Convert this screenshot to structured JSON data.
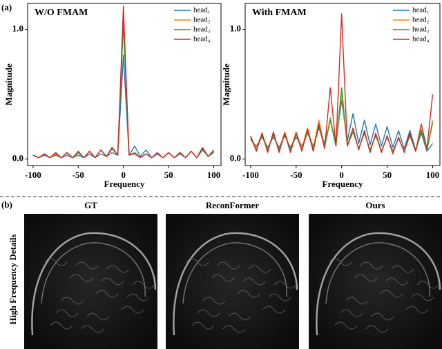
{
  "figure": {
    "label_a": "(a)",
    "label_b": "(b)",
    "row_label": "High Frequency Details",
    "image_titles": [
      "GT",
      "ReconFormer",
      "Ours"
    ]
  },
  "chart_data": [
    {
      "type": "line",
      "title": "W/O FMAM",
      "xlabel": "Frequency",
      "ylabel": "Magnitude",
      "xlim": [
        -106,
        108
      ],
      "ylim": [
        -0.05,
        1.2
      ],
      "xticks": [
        -100,
        -50,
        0,
        50,
        100
      ],
      "yticks": [
        {
          "value": 0,
          "label": "0.0"
        },
        {
          "value": 1,
          "label": "1.0"
        }
      ],
      "legend": "upper right",
      "x": [
        -100,
        -93.75,
        -87.5,
        -81.25,
        -75,
        -68.75,
        -62.5,
        -56.25,
        -50,
        -43.75,
        -37.5,
        -31.25,
        -25,
        -18.75,
        -12.5,
        -6.25,
        0,
        6.25,
        12.5,
        18.75,
        25,
        31.25,
        37.5,
        43.75,
        50,
        56.25,
        62.5,
        68.75,
        75,
        81.25,
        87.5,
        93.75,
        100
      ],
      "series": [
        {
          "name": "head₁",
          "color": "#1f77b4",
          "values": [
            0.03,
            0.01,
            0.03,
            0.01,
            0.03,
            0.01,
            0.03,
            0.01,
            0.03,
            0.01,
            0.04,
            0.01,
            0.04,
            0.02,
            0.05,
            0.03,
            0.8,
            0.03,
            0.1,
            0.02,
            0.07,
            0.01,
            0.05,
            0.01,
            0.05,
            0.01,
            0.04,
            0.01,
            0.06,
            0.01,
            0.07,
            0.02,
            0.05
          ]
        },
        {
          "name": "head₂",
          "color": "#ff7f0e",
          "values": [
            0.03,
            0.01,
            0.04,
            0.01,
            0.04,
            0.01,
            0.05,
            0.01,
            0.05,
            0.01,
            0.06,
            0.01,
            0.07,
            0.02,
            0.09,
            0.03,
            1.1,
            0.03,
            0.05,
            0.01,
            0.04,
            0.01,
            0.04,
            0.01,
            0.05,
            0.01,
            0.05,
            0.01,
            0.06,
            0.01,
            0.08,
            0.02,
            0.06
          ]
        },
        {
          "name": "head₃",
          "color": "#2ca02c",
          "values": [
            0.03,
            0.01,
            0.04,
            0.01,
            0.05,
            0.01,
            0.05,
            0.01,
            0.05,
            0.01,
            0.06,
            0.01,
            0.07,
            0.02,
            0.08,
            0.03,
            1.05,
            0.03,
            0.05,
            0.01,
            0.04,
            0.01,
            0.04,
            0.01,
            0.05,
            0.01,
            0.05,
            0.01,
            0.06,
            0.01,
            0.08,
            0.02,
            0.06
          ]
        },
        {
          "name": "head₄",
          "color": "#d62728",
          "values": [
            0.03,
            0.01,
            0.04,
            0.01,
            0.05,
            0.01,
            0.05,
            0.01,
            0.06,
            0.01,
            0.06,
            0.01,
            0.07,
            0.02,
            0.09,
            0.03,
            1.18,
            0.03,
            0.04,
            0.01,
            0.04,
            0.01,
            0.04,
            0.01,
            0.05,
            0.01,
            0.05,
            0.01,
            0.06,
            0.01,
            0.09,
            0.02,
            0.07
          ]
        }
      ]
    },
    {
      "type": "line",
      "title": "With FMAM",
      "xlabel": "Frequency",
      "ylabel": "Magnitude",
      "xlim": [
        -106,
        108
      ],
      "ylim": [
        -0.05,
        1.2
      ],
      "xticks": [
        -100,
        -50,
        0,
        50,
        100
      ],
      "yticks": [
        {
          "value": 0,
          "label": "0.0"
        },
        {
          "value": 1,
          "label": "1.0"
        }
      ],
      "legend": "upper right",
      "x": [
        -100,
        -93.75,
        -87.5,
        -81.25,
        -75,
        -68.75,
        -62.5,
        -56.25,
        -50,
        -43.75,
        -37.5,
        -31.25,
        -25,
        -18.75,
        -12.5,
        -6.25,
        0,
        6.25,
        12.5,
        18.75,
        25,
        31.25,
        37.5,
        43.75,
        50,
        56.25,
        62.5,
        68.75,
        75,
        81.25,
        87.5,
        93.75,
        100
      ],
      "series": [
        {
          "name": "head₁",
          "color": "#1f77b4",
          "values": [
            0.15,
            0.1,
            0.17,
            0.09,
            0.17,
            0.09,
            0.18,
            0.09,
            0.17,
            0.1,
            0.2,
            0.1,
            0.24,
            0.12,
            0.3,
            0.13,
            0.45,
            0.14,
            0.35,
            0.12,
            0.3,
            0.11,
            0.27,
            0.1,
            0.25,
            0.09,
            0.22,
            0.08,
            0.22,
            0.07,
            0.2,
            0.06,
            0.12
          ]
        },
        {
          "name": "head₂",
          "color": "#ff7f0e",
          "values": [
            0.17,
            0.08,
            0.2,
            0.07,
            0.2,
            0.07,
            0.21,
            0.07,
            0.21,
            0.08,
            0.24,
            0.08,
            0.3,
            0.09,
            0.32,
            0.1,
            0.5,
            0.1,
            0.22,
            0.08,
            0.2,
            0.07,
            0.19,
            0.06,
            0.17,
            0.06,
            0.16,
            0.06,
            0.19,
            0.06,
            0.23,
            0.07,
            0.3
          ]
        },
        {
          "name": "head₃",
          "color": "#2ca02c",
          "values": [
            0.16,
            0.07,
            0.18,
            0.07,
            0.19,
            0.07,
            0.19,
            0.07,
            0.2,
            0.07,
            0.21,
            0.08,
            0.25,
            0.09,
            0.3,
            0.1,
            0.55,
            0.1,
            0.21,
            0.08,
            0.2,
            0.07,
            0.18,
            0.06,
            0.17,
            0.06,
            0.16,
            0.06,
            0.18,
            0.06,
            0.22,
            0.07,
            0.28
          ]
        },
        {
          "name": "head₄",
          "color": "#d62728",
          "values": [
            0.18,
            0.06,
            0.2,
            0.05,
            0.21,
            0.05,
            0.2,
            0.05,
            0.2,
            0.06,
            0.23,
            0.06,
            0.27,
            0.08,
            0.55,
            0.1,
            1.12,
            0.1,
            0.24,
            0.07,
            0.22,
            0.05,
            0.2,
            0.05,
            0.18,
            0.04,
            0.17,
            0.05,
            0.2,
            0.06,
            0.27,
            0.08,
            0.5
          ]
        }
      ]
    }
  ]
}
